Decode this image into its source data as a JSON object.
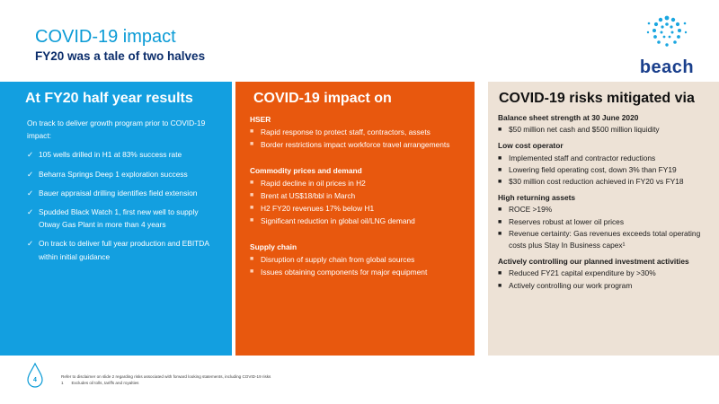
{
  "header": {
    "title": "COVID-19 impact",
    "subtitle": "FY20 was a tale of two halves",
    "logo_text": "beach"
  },
  "panel_left": {
    "heading": "At FY20 half year results",
    "intro": "On track to deliver growth program prior to COVID-19 impact:",
    "items": [
      "105 wells drilled in H1 at 83% success rate",
      "Beharra Springs Deep 1 exploration success",
      "Bauer appraisal drilling identifies field extension",
      "Spudded Black Watch 1, first new well to supply Otway Gas Plant in more than 4 years",
      "On track to deliver full year production and EBITDA within initial guidance"
    ]
  },
  "panel_mid": {
    "heading": "COVID-19 impact on",
    "sections": [
      {
        "title": "HSER",
        "items": [
          "Rapid response to protect staff, contractors, assets",
          "Border restrictions impact workforce travel arrangements"
        ]
      },
      {
        "title": "Commodity prices and demand",
        "items": [
          "Rapid decline in oil prices in H2",
          "Brent at US$18/bbl in March",
          "H2 FY20 revenues 17% below H1",
          "Significant reduction in global oil/LNG demand"
        ]
      },
      {
        "title": "Supply chain",
        "items": [
          "Disruption of supply chain from global sources",
          "Issues obtaining components for major equipment"
        ]
      }
    ]
  },
  "panel_right": {
    "heading": "COVID-19 risks mitigated via",
    "sections": [
      {
        "title": "Balance sheet strength at 30 June 2020",
        "items": [
          "$50 million net cash and $500 million liquidity"
        ]
      },
      {
        "title": "Low cost operator",
        "items": [
          "Implemented staff and contractor reductions",
          "Lowering field operating cost, down 3% than FY19",
          "$30 million cost reduction achieved in FY20 vs FY18"
        ]
      },
      {
        "title": "High returning assets",
        "items": [
          "ROCE >19%",
          "Reserves robust at lower oil prices",
          "Revenue certainty: Gas revenues exceeds total operating costs plus Stay In Business capex¹"
        ]
      },
      {
        "title": "Actively controlling our planned investment activities",
        "items": [
          "Reduced FY21 capital expenditure by >30%",
          "Actively controlling our work program"
        ]
      }
    ]
  },
  "footer": {
    "page_number": "4",
    "note1": "Refer to disclaimer on slide 2 regarding risks associated with forward looking statements, including COVID-19 risks",
    "note2": "1       Excludes oil tolls, tariffs and royalties"
  },
  "colors": {
    "brand_blue": "#0a9bd6",
    "navy": "#0b2d6b",
    "panel_blue": "#139fe0",
    "panel_orange": "#e8580e",
    "panel_beige": "#ede2d6"
  }
}
